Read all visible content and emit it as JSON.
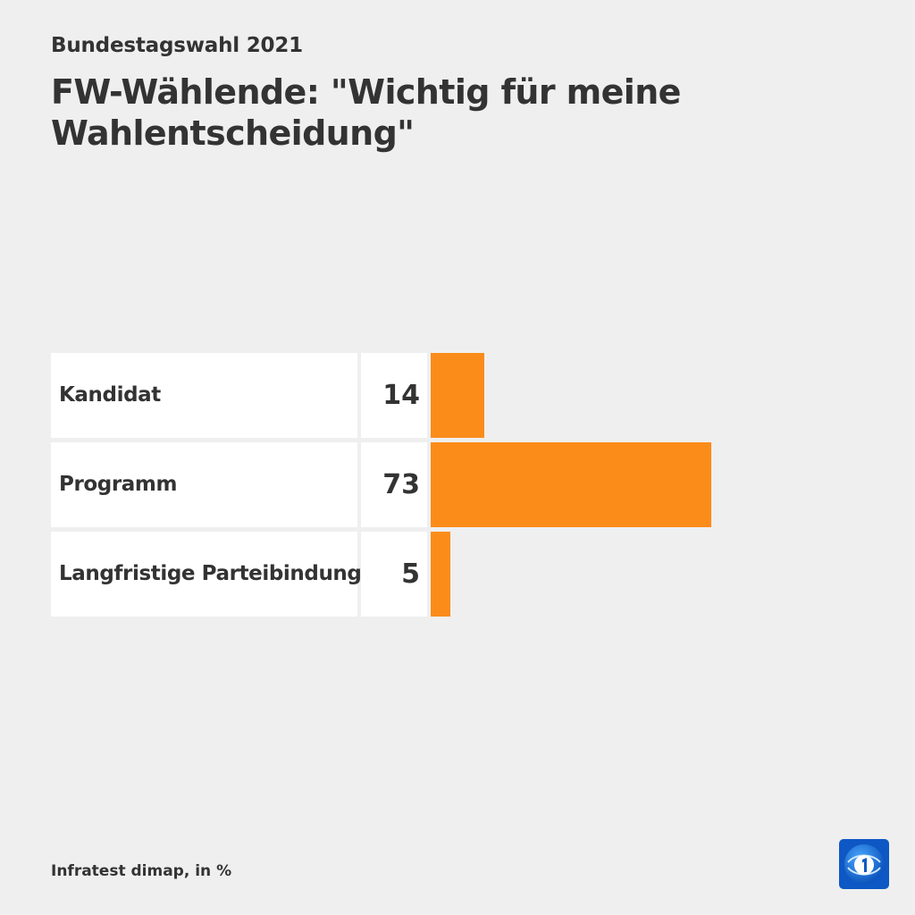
{
  "header": {
    "subtitle": "Bundestagswahl 2021",
    "title": "FW-Wählende: \"Wichtig für meine Wahlentscheidung\""
  },
  "colors": {
    "bar": "#fb8c1a",
    "background": "#efefef",
    "cell": "#ffffff",
    "text": "#333333",
    "logo": "#1060c8"
  },
  "logo_icon": "ard-tagesschau-logo-icon",
  "chart_data": {
    "type": "bar",
    "orientation": "horizontal",
    "categories": [
      "Kandidat",
      "Programm",
      "Langfristige Parteibindung"
    ],
    "values": [
      14,
      73,
      5
    ],
    "value_labels": [
      "14",
      "73",
      "5"
    ],
    "title": "FW-Wählende: \"Wichtig für meine Wahlentscheidung\"",
    "subtitle": "Bundestagswahl 2021",
    "xlim": [
      0,
      100
    ],
    "grid": false,
    "legend": "none"
  },
  "footer": {
    "source": "Infratest dimap, in %"
  }
}
